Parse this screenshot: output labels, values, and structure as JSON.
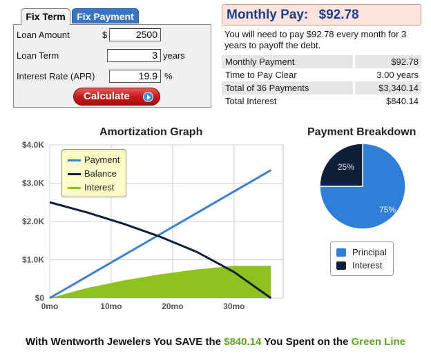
{
  "calculator": {
    "tabs": [
      {
        "label": "Fix Term",
        "active": true
      },
      {
        "label": "Fix Payment",
        "active": false
      }
    ],
    "fields": {
      "loan_amount": {
        "label": "Loan Amount",
        "prefix": "$",
        "value": "2500"
      },
      "loan_term": {
        "label": "Loan Term",
        "value": "3",
        "unit": "years"
      },
      "interest_rate": {
        "label": "Interest Rate (APR)",
        "value": "19.9",
        "unit": "%"
      }
    },
    "calculate_label": "Calculate"
  },
  "results": {
    "header_label": "Monthly Pay:",
    "header_value": "$92.78",
    "description": "You will need to pay $92.78 every month for 3 years to payoff the debt.",
    "rows": [
      {
        "label": "Monthly Payment",
        "value": "$92.78"
      },
      {
        "label": "Time to Pay Clear",
        "value": "3.00 years"
      },
      {
        "label": "Total of 36 Payments",
        "value": "$3,340.14"
      },
      {
        "label": "Total Interest",
        "value": "$840.14"
      }
    ]
  },
  "colors": {
    "payment": "#3a7fd0",
    "balance": "#0e1f3a",
    "interest": "#8ec21f",
    "principal": "#2f7fd8",
    "interest_slice": "#0e1f3a",
    "accent_green": "#5da51e"
  },
  "chart_data": [
    {
      "type": "line",
      "title": "Amortization Graph",
      "xlabel": "",
      "ylabel": "",
      "x_ticks": [
        "0mo",
        "10mo",
        "20mo",
        "30mo"
      ],
      "y_ticks": [
        "$0",
        "$1.0K",
        "$2.0K",
        "$3.0K",
        "$4.0K"
      ],
      "xlim": [
        0,
        38
      ],
      "ylim": [
        0,
        4000
      ],
      "grid": true,
      "legend_position": "top-left",
      "series": [
        {
          "name": "Payment",
          "style": "line",
          "x": [
            0,
            36
          ],
          "y": [
            0,
            3340
          ]
        },
        {
          "name": "Balance",
          "style": "line",
          "x": [
            0,
            6,
            12,
            18,
            24,
            30,
            36
          ],
          "y": [
            2500,
            2240,
            1940,
            1600,
            1200,
            680,
            0
          ]
        },
        {
          "name": "Interest",
          "style": "area",
          "x": [
            0,
            6,
            12,
            18,
            24,
            30,
            36
          ],
          "y": [
            0,
            260,
            460,
            620,
            750,
            840,
            840
          ]
        }
      ]
    },
    {
      "type": "pie",
      "title": "Payment Breakdown",
      "slices": [
        {
          "name": "Principal",
          "value": 75,
          "label": "75%"
        },
        {
          "name": "Interest",
          "value": 25,
          "label": "25%"
        }
      ],
      "legend_position": "bottom"
    }
  ],
  "legend_amort": [
    "Payment",
    "Balance",
    "Interest"
  ],
  "footer": {
    "prefix": "With Wentworth Jewelers You SAVE the ",
    "amount": "$840.14",
    "middle": " You Spent on the ",
    "highlight": "Green Line"
  }
}
